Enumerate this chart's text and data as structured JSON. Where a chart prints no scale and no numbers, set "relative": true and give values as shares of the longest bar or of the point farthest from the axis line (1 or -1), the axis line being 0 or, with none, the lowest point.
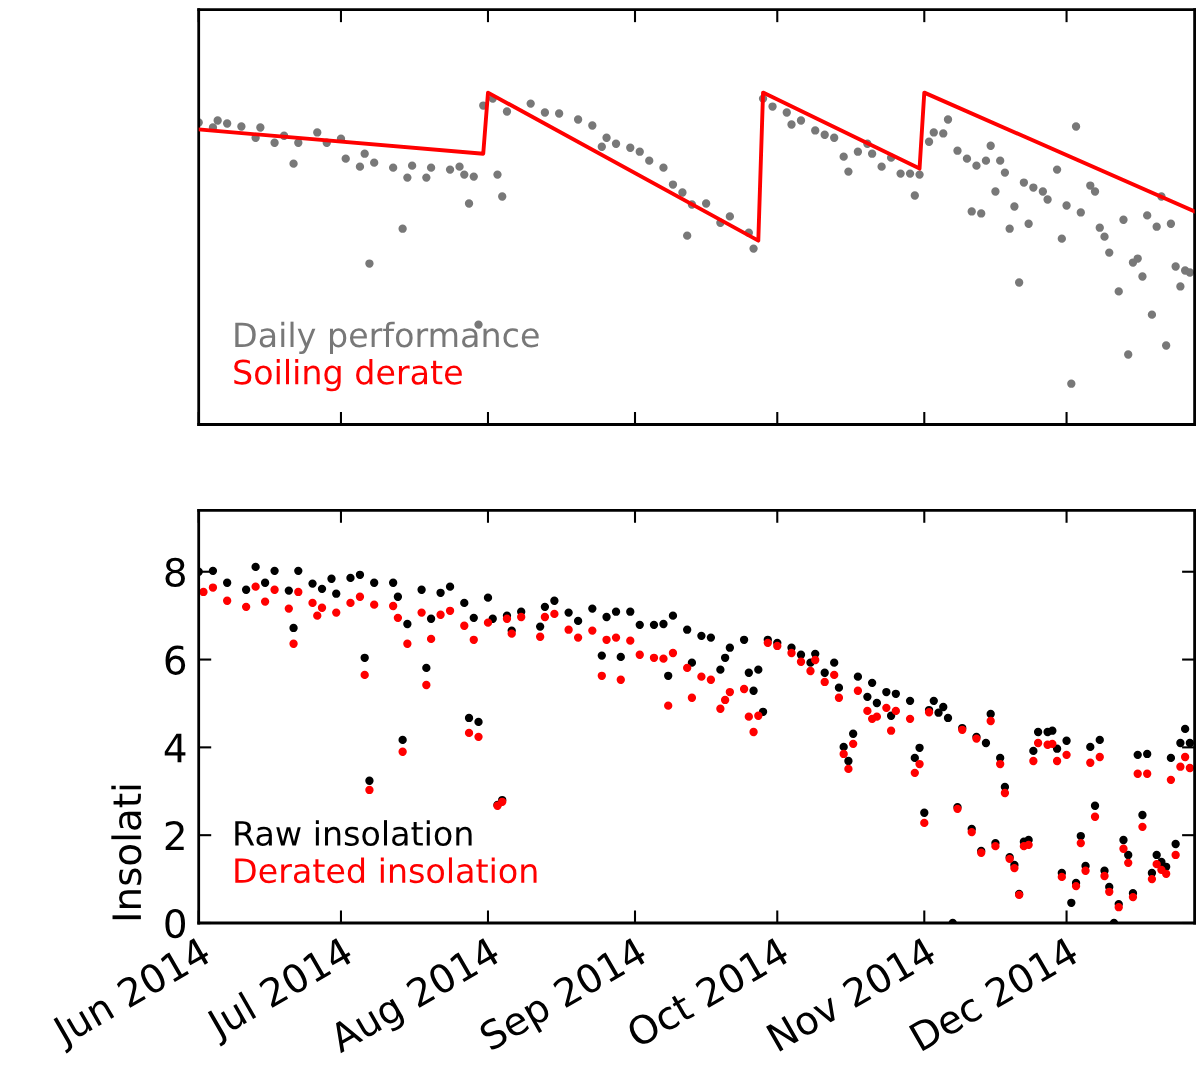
{
  "chart_data": [
    {
      "type": "scatter",
      "relative": true,
      "xlim": [
        "2014-06-01",
        "2014-12-28"
      ],
      "tick_labels": false,
      "legend": "bottom left",
      "series": [
        {
          "name": "Daily performance",
          "color": "#787878",
          "marker": "circle",
          "x": [
            "2014-06-01",
            "2014-06-04",
            "2014-06-05",
            "2014-06-07",
            "2014-06-10",
            "2014-06-13",
            "2014-06-14",
            "2014-06-17",
            "2014-06-19",
            "2014-06-21",
            "2014-06-22",
            "2014-06-26",
            "2014-06-28",
            "2014-07-01",
            "2014-07-02",
            "2014-07-05",
            "2014-07-06",
            "2014-07-07",
            "2014-07-08",
            "2014-07-12",
            "2014-07-14",
            "2014-07-15",
            "2014-07-16",
            "2014-07-19",
            "2014-07-20",
            "2014-07-24",
            "2014-07-26",
            "2014-07-27",
            "2014-07-28",
            "2014-07-29",
            "2014-07-30",
            "2014-07-31",
            "2014-08-02",
            "2014-08-03",
            "2014-08-04",
            "2014-08-05",
            "2014-08-10",
            "2014-08-13",
            "2014-08-16",
            "2014-08-20",
            "2014-08-23",
            "2014-08-25",
            "2014-08-26",
            "2014-08-28",
            "2014-08-31",
            "2014-09-02",
            "2014-09-04",
            "2014-09-07",
            "2014-09-09",
            "2014-09-11",
            "2014-09-12",
            "2014-09-13",
            "2014-09-16",
            "2014-09-19",
            "2014-09-21",
            "2014-09-25",
            "2014-09-26",
            "2014-09-28",
            "2014-09-30",
            "2014-10-03",
            "2014-10-04",
            "2014-10-06",
            "2014-10-09",
            "2014-10-11",
            "2014-10-13",
            "2014-10-15",
            "2014-10-16",
            "2014-10-18",
            "2014-10-20",
            "2014-10-21",
            "2014-10-23",
            "2014-10-25",
            "2014-10-27",
            "2014-10-29",
            "2014-10-30",
            "2014-10-31",
            "2014-11-02",
            "2014-11-03",
            "2014-11-05",
            "2014-11-06",
            "2014-11-08",
            "2014-11-10",
            "2014-11-11",
            "2014-11-12",
            "2014-11-13",
            "2014-11-14",
            "2014-11-15",
            "2014-11-16",
            "2014-11-17",
            "2014-11-18",
            "2014-11-19",
            "2014-11-20",
            "2014-11-21",
            "2014-11-22",
            "2014-11-23",
            "2014-11-24",
            "2014-11-26",
            "2014-11-27",
            "2014-11-29",
            "2014-11-30",
            "2014-12-01",
            "2014-12-02",
            "2014-12-03",
            "2014-12-04",
            "2014-12-06",
            "2014-12-07",
            "2014-12-08",
            "2014-12-09",
            "2014-12-10",
            "2014-12-12",
            "2014-12-13",
            "2014-12-14",
            "2014-12-15",
            "2014-12-16",
            "2014-12-17",
            "2014-12-18",
            "2014-12-19",
            "2014-12-20",
            "2014-12-21",
            "2014-12-22",
            "2014-12-23",
            "2014-12-24",
            "2014-12-25",
            "2014-12-26",
            "2014-12-27"
          ],
          "values": [
            0.91,
            0.895,
            0.916,
            0.907,
            0.898,
            0.864,
            0.895,
            0.849,
            0.87,
            0.786,
            0.849,
            0.88,
            0.849,
            0.861,
            0.801,
            0.777,
            0.816,
            0.485,
            0.789,
            0.774,
            0.59,
            0.744,
            0.78,
            0.744,
            0.774,
            0.768,
            0.777,
            0.753,
            0.666,
            0.747,
            0.301,
            0.961,
            0.982,
            0.753,
            0.687,
            0.943,
            0.967,
            0.94,
            0.937,
            0.919,
            0.901,
            0.837,
            0.864,
            0.846,
            0.834,
            0.822,
            0.795,
            0.774,
            0.723,
            0.699,
            0.569,
            0.663,
            0.666,
            0.608,
            0.627,
            0.578,
            0.53,
            0.982,
            0.958,
            0.94,
            0.904,
            0.916,
            0.886,
            0.873,
            0.864,
            0.807,
            0.762,
            0.822,
            0.846,
            0.816,
            0.777,
            0.804,
            0.756,
            0.756,
            0.69,
            0.753,
            0.852,
            0.88,
            0.877,
            0.919,
            0.825,
            0.801,
            0.642,
            0.78,
            0.636,
            0.795,
            0.84,
            0.702,
            0.795,
            0.759,
            0.59,
            0.657,
            0.428,
            0.729,
            0.605,
            0.714,
            0.702,
            0.678,
            0.768,
            0.56,
            0.66,
            0.123,
            0.898,
            0.639,
            0.72,
            0.702,
            0.593,
            0.566,
            0.518,
            0.401,
            0.617,
            0.211,
            0.488,
            0.5,
            0.446,
            0.63,
            0.331,
            0.596,
            0.687,
            0.238,
            0.605,
            0.476,
            0.416,
            0.464,
            0.458
          ]
        },
        {
          "name": "Soiling derate",
          "color": "#ff0000",
          "type": "line",
          "line_style": "solid",
          "x": [
            "2014-06-01",
            "2014-07-31",
            "2014-08-01",
            "2014-09-27",
            "2014-09-28",
            "2014-10-31",
            "2014-11-01",
            "2014-12-28"
          ],
          "values": [
            0.889,
            0.816,
            1.0,
            0.554,
            1.0,
            0.771,
            1.0,
            0.642
          ]
        }
      ]
    },
    {
      "type": "scatter",
      "ylabel": "Insolati",
      "xlim": [
        "2014-06-01",
        "2014-12-28"
      ],
      "ylim": [
        0,
        9.4
      ],
      "yticks": [
        0,
        2,
        4,
        6,
        8
      ],
      "marker": "circle",
      "legend": "bottom left",
      "xticks": [
        {
          "value": "2014-06-01",
          "label": "Jun 2014"
        },
        {
          "value": "2014-07-01",
          "label": "Jul 2014"
        },
        {
          "value": "2014-08-01",
          "label": "Aug 2014"
        },
        {
          "value": "2014-09-01",
          "label": "Sep 2014"
        },
        {
          "value": "2014-10-01",
          "label": "Oct 2014"
        },
        {
          "value": "2014-11-01",
          "label": "Nov 2014"
        },
        {
          "value": "2014-12-01",
          "label": "Dec 2014"
        }
      ],
      "series": [
        {
          "name": "Raw insolation",
          "color": "#000000",
          "x": [
            "2014-06-01",
            "2014-06-04",
            "2014-06-07",
            "2014-06-11",
            "2014-06-13",
            "2014-06-15",
            "2014-06-17",
            "2014-06-20",
            "2014-06-21",
            "2014-06-22",
            "2014-06-25",
            "2014-06-27",
            "2014-06-29",
            "2014-06-30",
            "2014-07-03",
            "2014-07-05",
            "2014-07-06",
            "2014-07-07",
            "2014-07-08",
            "2014-07-12",
            "2014-07-13",
            "2014-07-14",
            "2014-07-15",
            "2014-07-18",
            "2014-07-19",
            "2014-07-20",
            "2014-07-22",
            "2014-07-24",
            "2014-07-27",
            "2014-07-28",
            "2014-07-29",
            "2014-07-30",
            "2014-08-01",
            "2014-08-02",
            "2014-08-03",
            "2014-08-04",
            "2014-08-05",
            "2014-08-06",
            "2014-08-08",
            "2014-08-12",
            "2014-08-13",
            "2014-08-15",
            "2014-08-18",
            "2014-08-20",
            "2014-08-23",
            "2014-08-25",
            "2014-08-26",
            "2014-08-28",
            "2014-08-29",
            "2014-08-31",
            "2014-09-02",
            "2014-09-05",
            "2014-09-07",
            "2014-09-08",
            "2014-09-09",
            "2014-09-12",
            "2014-09-13",
            "2014-09-15",
            "2014-09-17",
            "2014-09-19",
            "2014-09-20",
            "2014-09-21",
            "2014-09-24",
            "2014-09-25",
            "2014-09-26",
            "2014-09-27",
            "2014-09-28",
            "2014-09-29",
            "2014-10-01",
            "2014-10-04",
            "2014-10-06",
            "2014-10-08",
            "2014-10-09",
            "2014-10-11",
            "2014-10-13",
            "2014-10-14",
            "2014-10-15",
            "2014-10-16",
            "2014-10-17",
            "2014-10-18",
            "2014-10-20",
            "2014-10-21",
            "2014-10-22",
            "2014-10-24",
            "2014-10-25",
            "2014-10-26",
            "2014-10-29",
            "2014-10-30",
            "2014-10-31",
            "2014-11-01",
            "2014-11-02",
            "2014-11-03",
            "2014-11-04",
            "2014-11-05",
            "2014-11-06",
            "2014-11-07",
            "2014-11-08",
            "2014-11-09",
            "2014-11-11",
            "2014-11-12",
            "2014-11-13",
            "2014-11-14",
            "2014-11-15",
            "2014-11-16",
            "2014-11-17",
            "2014-11-18",
            "2014-11-19",
            "2014-11-20",
            "2014-11-21",
            "2014-11-22",
            "2014-11-23",
            "2014-11-24",
            "2014-11-25",
            "2014-11-27",
            "2014-11-28",
            "2014-11-29",
            "2014-11-30",
            "2014-12-01",
            "2014-12-02",
            "2014-12-03",
            "2014-12-04",
            "2014-12-05",
            "2014-12-06",
            "2014-12-07",
            "2014-12-08",
            "2014-12-09",
            "2014-12-10",
            "2014-12-11",
            "2014-12-12",
            "2014-12-13",
            "2014-12-14",
            "2014-12-15",
            "2014-12-16",
            "2014-12-17",
            "2014-12-18",
            "2014-12-19",
            "2014-12-20",
            "2014-12-21",
            "2014-12-22",
            "2014-12-23",
            "2014-12-24",
            "2014-12-25",
            "2014-12-26",
            "2014-12-27"
          ],
          "values": [
            8.0,
            8.02,
            7.75,
            7.59,
            8.11,
            7.75,
            8.02,
            7.57,
            6.72,
            8.02,
            7.73,
            7.61,
            7.84,
            7.5,
            7.86,
            7.93,
            6.04,
            3.24,
            7.75,
            7.75,
            7.43,
            4.17,
            6.81,
            7.59,
            5.81,
            6.93,
            7.52,
            7.66,
            7.29,
            4.67,
            6.95,
            4.58,
            7.41,
            6.93,
            2.69,
            2.8,
            7.0,
            6.66,
            7.09,
            6.75,
            7.2,
            7.34,
            7.07,
            6.88,
            7.16,
            6.09,
            6.97,
            7.09,
            6.06,
            7.09,
            6.79,
            6.79,
            6.81,
            5.63,
            7.0,
            6.68,
            5.93,
            6.54,
            6.5,
            5.77,
            6.04,
            6.27,
            6.45,
            5.7,
            5.29,
            5.77,
            4.81,
            6.45,
            6.38,
            6.27,
            6.11,
            5.93,
            6.13,
            5.7,
            5.93,
            5.36,
            4.01,
            3.69,
            4.31,
            5.61,
            5.15,
            5.47,
            5.01,
            5.26,
            4.72,
            5.22,
            5.06,
            3.76,
            3.99,
            2.51,
            4.85,
            5.06,
            4.79,
            4.92,
            4.67,
            0.0,
            2.64,
            4.44,
            2.14,
            4.24,
            1.64,
            4.1,
            4.76,
            1.82,
            3.76,
            3.1,
            1.5,
            1.32,
            0.66,
            1.85,
            1.89,
            3.92,
            4.35,
            4.35,
            4.38,
            3.97,
            1.14,
            4.15,
            0.46,
            0.91,
            1.98,
            1.3,
            4.01,
            2.67,
            4.17,
            1.19,
            0.82,
            0.0,
            0.43,
            1.89,
            1.55,
            0.68,
            3.83,
            2.46,
            3.85,
            1.14,
            1.55,
            1.39,
            1.28,
            3.76,
            1.8,
            4.1,
            4.42,
            4.1
          ]
        },
        {
          "name": "Derated insolation",
          "color": "#ff0000",
          "x": [
            "2014-06-02",
            "2014-06-04",
            "2014-06-07",
            "2014-06-11",
            "2014-06-13",
            "2014-06-15",
            "2014-06-17",
            "2014-06-20",
            "2014-06-21",
            "2014-06-22",
            "2014-06-25",
            "2014-06-26",
            "2014-06-27",
            "2014-06-30",
            "2014-07-03",
            "2014-07-05",
            "2014-07-06",
            "2014-07-07",
            "2014-07-08",
            "2014-07-12",
            "2014-07-13",
            "2014-07-14",
            "2014-07-15",
            "2014-07-18",
            "2014-07-19",
            "2014-07-20",
            "2014-07-22",
            "2014-07-24",
            "2014-07-27",
            "2014-07-28",
            "2014-07-29",
            "2014-07-30",
            "2014-08-01",
            "2014-08-03",
            "2014-08-04",
            "2014-08-05",
            "2014-08-06",
            "2014-08-08",
            "2014-08-12",
            "2014-08-13",
            "2014-08-15",
            "2014-08-18",
            "2014-08-20",
            "2014-08-23",
            "2014-08-25",
            "2014-08-26",
            "2014-08-28",
            "2014-08-29",
            "2014-08-31",
            "2014-09-02",
            "2014-09-05",
            "2014-09-07",
            "2014-09-08",
            "2014-09-09",
            "2014-09-12",
            "2014-09-13",
            "2014-09-15",
            "2014-09-17",
            "2014-09-19",
            "2014-09-20",
            "2014-09-21",
            "2014-09-24",
            "2014-09-25",
            "2014-09-26",
            "2014-09-27",
            "2014-09-29",
            "2014-10-01",
            "2014-10-04",
            "2014-10-06",
            "2014-10-08",
            "2014-10-09",
            "2014-10-11",
            "2014-10-13",
            "2014-10-14",
            "2014-10-15",
            "2014-10-16",
            "2014-10-17",
            "2014-10-18",
            "2014-10-20",
            "2014-10-21",
            "2014-10-22",
            "2014-10-24",
            "2014-10-25",
            "2014-10-26",
            "2014-10-29",
            "2014-10-30",
            "2014-10-31",
            "2014-11-01",
            "2014-11-02",
            "2014-11-08",
            "2014-11-09",
            "2014-11-11",
            "2014-11-12",
            "2014-11-13",
            "2014-11-15",
            "2014-11-16",
            "2014-11-17",
            "2014-11-18",
            "2014-11-19",
            "2014-11-20",
            "2014-11-21",
            "2014-11-22",
            "2014-11-23",
            "2014-11-24",
            "2014-11-25",
            "2014-11-27",
            "2014-11-28",
            "2014-11-29",
            "2014-11-30",
            "2014-12-01",
            "2014-12-03",
            "2014-12-04",
            "2014-12-05",
            "2014-12-06",
            "2014-12-07",
            "2014-12-08",
            "2014-12-09",
            "2014-12-10",
            "2014-12-12",
            "2014-12-13",
            "2014-12-14",
            "2014-12-15",
            "2014-12-16",
            "2014-12-17",
            "2014-12-18",
            "2014-12-19",
            "2014-12-20",
            "2014-12-21",
            "2014-12-22",
            "2014-12-23",
            "2014-12-24",
            "2014-12-25",
            "2014-12-26",
            "2014-12-27"
          ],
          "values": [
            7.54,
            7.64,
            7.34,
            7.2,
            7.66,
            7.32,
            7.59,
            7.16,
            6.36,
            7.54,
            7.29,
            7.0,
            7.18,
            7.07,
            7.29,
            7.43,
            5.65,
            3.03,
            7.25,
            7.22,
            6.95,
            3.9,
            6.36,
            7.07,
            5.42,
            6.47,
            7.02,
            7.11,
            6.77,
            4.33,
            6.45,
            4.24,
            6.84,
            2.67,
            2.76,
            6.93,
            6.59,
            6.97,
            6.52,
            6.97,
            7.04,
            6.68,
            6.5,
            6.66,
            5.63,
            6.45,
            6.5,
            5.54,
            6.43,
            6.11,
            6.04,
            6.02,
            4.95,
            6.15,
            5.81,
            5.13,
            5.61,
            5.54,
            4.88,
            5.08,
            5.26,
            5.33,
            4.7,
            4.35,
            4.72,
            6.38,
            6.31,
            6.15,
            5.95,
            5.74,
            5.99,
            5.49,
            5.65,
            5.13,
            3.85,
            3.51,
            4.08,
            5.29,
            4.83,
            4.65,
            4.7,
            4.9,
            4.38,
            4.83,
            4.65,
            3.42,
            3.62,
            2.28,
            4.8,
            2.6,
            4.4,
            2.07,
            4.2,
            1.6,
            4.6,
            1.75,
            3.62,
            2.96,
            1.46,
            1.25,
            0.64,
            1.75,
            1.78,
            3.69,
            4.1,
            4.06,
            4.08,
            3.69,
            1.05,
            3.83,
            0.84,
            1.82,
            1.19,
            3.65,
            2.42,
            3.78,
            1.07,
            0.71,
            0.36,
            1.69,
            1.37,
            0.59,
            3.4,
            2.19,
            3.4,
            1.0,
            1.34,
            1.21,
            1.12,
            3.26,
            1.55,
            3.56,
            3.78,
            3.53
          ]
        }
      ]
    }
  ]
}
